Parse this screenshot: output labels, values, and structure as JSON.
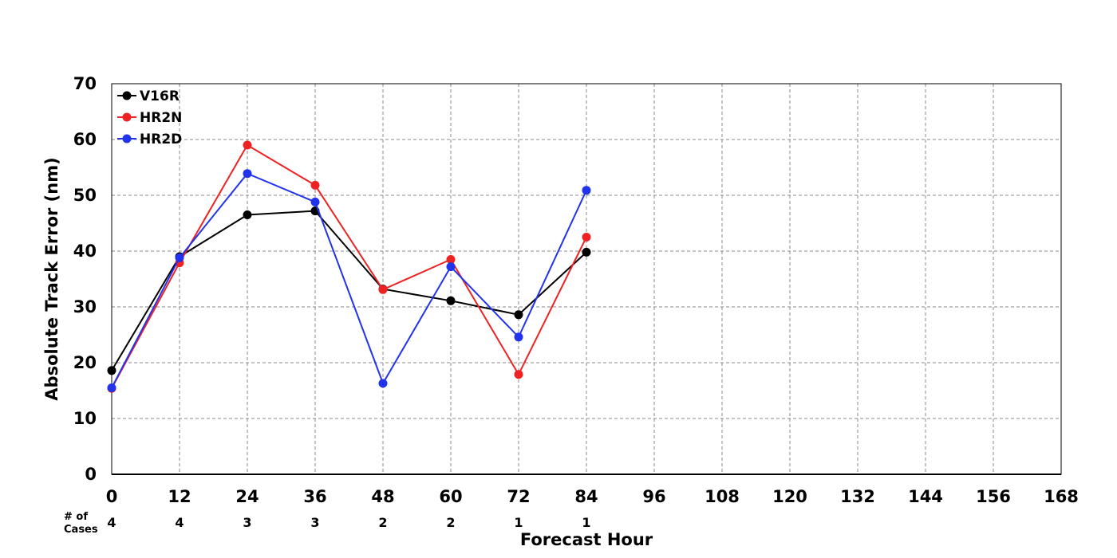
{
  "chart_data": {
    "type": "line",
    "xlabel": "Forecast Hour",
    "ylabel": "Absolute Track Error (nm)",
    "xlim": [
      0,
      168
    ],
    "ylim": [
      0,
      70
    ],
    "x_ticks": [
      0,
      12,
      24,
      36,
      48,
      60,
      72,
      84,
      96,
      108,
      120,
      132,
      144,
      156,
      168
    ],
    "y_ticks": [
      0,
      10,
      20,
      30,
      40,
      50,
      60,
      70
    ],
    "grid": true,
    "legend_position": "top-left",
    "cases_label": "# of Cases",
    "cases_label_lines": [
      "# of",
      "Cases"
    ],
    "cases_x": [
      0,
      12,
      24,
      36,
      48,
      60,
      72,
      84
    ],
    "cases": [
      4,
      4,
      3,
      3,
      2,
      2,
      1,
      1
    ],
    "series": [
      {
        "name": "V16R",
        "color": "#000000",
        "x": [
          0,
          12,
          24,
          36,
          48,
          60,
          72,
          84
        ],
        "values": [
          18.6,
          39.0,
          46.5,
          47.2,
          33.2,
          31.1,
          28.6,
          39.8
        ]
      },
      {
        "name": "HR2N",
        "color": "#ee2222",
        "x": [
          0,
          12,
          24,
          36,
          48,
          60,
          72,
          84
        ],
        "values": [
          15.4,
          37.9,
          59.0,
          51.8,
          33.1,
          38.5,
          17.9,
          42.5
        ]
      },
      {
        "name": "HR2D",
        "color": "#2233ee",
        "x": [
          0,
          12,
          24,
          36,
          48,
          60,
          72,
          84
        ],
        "values": [
          15.5,
          38.8,
          53.9,
          48.8,
          16.3,
          37.2,
          24.6,
          50.9
        ]
      }
    ]
  }
}
